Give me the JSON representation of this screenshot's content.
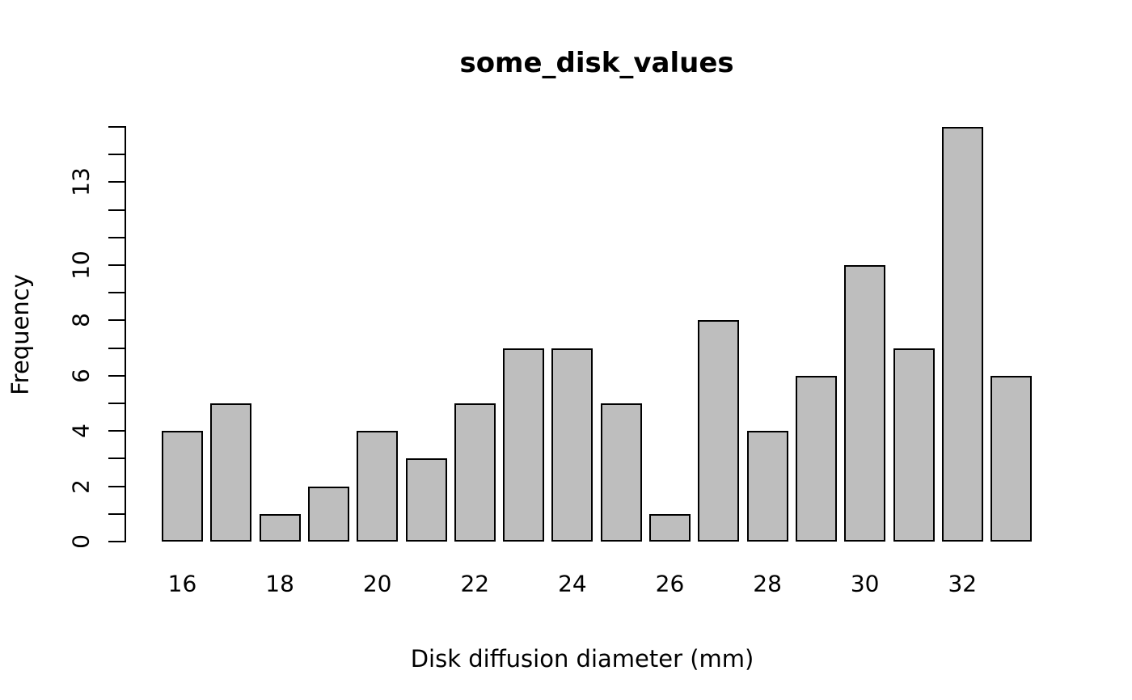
{
  "chart_data": {
    "type": "bar",
    "title": "some_disk_values",
    "xlabel": "Disk diffusion diameter (mm)",
    "ylabel": "Frequency",
    "categories": [
      16,
      17,
      18,
      19,
      20,
      21,
      22,
      23,
      24,
      25,
      26,
      27,
      28,
      29,
      30,
      31,
      32,
      33
    ],
    "values": [
      4,
      5,
      1,
      2,
      4,
      3,
      5,
      7,
      7,
      5,
      1,
      8,
      4,
      6,
      10,
      7,
      15,
      6
    ],
    "ylim": [
      0,
      15
    ],
    "y_tick_step": 1,
    "y_labeled_ticks": [
      0,
      2,
      4,
      6,
      8,
      10,
      13
    ],
    "x_labeled_categories": [
      16,
      18,
      20,
      22,
      24,
      26,
      28,
      30,
      32
    ],
    "grid": false,
    "legend": false,
    "bar_fill": "#bebebe",
    "bar_border": "#000000",
    "text_color": "#000000",
    "background": "#ffffff"
  }
}
